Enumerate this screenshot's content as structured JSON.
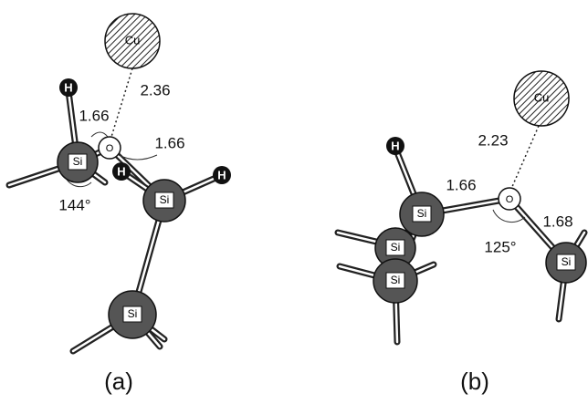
{
  "panels": [
    {
      "caption": "(a)",
      "atoms": [
        "Cu",
        "H",
        "Si",
        "O",
        "H",
        "Si",
        "H",
        "Si"
      ],
      "labels": [
        "2.36",
        "1.66",
        "1.66",
        "144°"
      ]
    },
    {
      "caption": "(b)",
      "atoms": [
        "Cu",
        "H",
        "Si",
        "O",
        "Si",
        "Si",
        "Si"
      ],
      "labels": [
        "2.23",
        "1.66",
        "125°",
        "1.68"
      ]
    }
  ]
}
